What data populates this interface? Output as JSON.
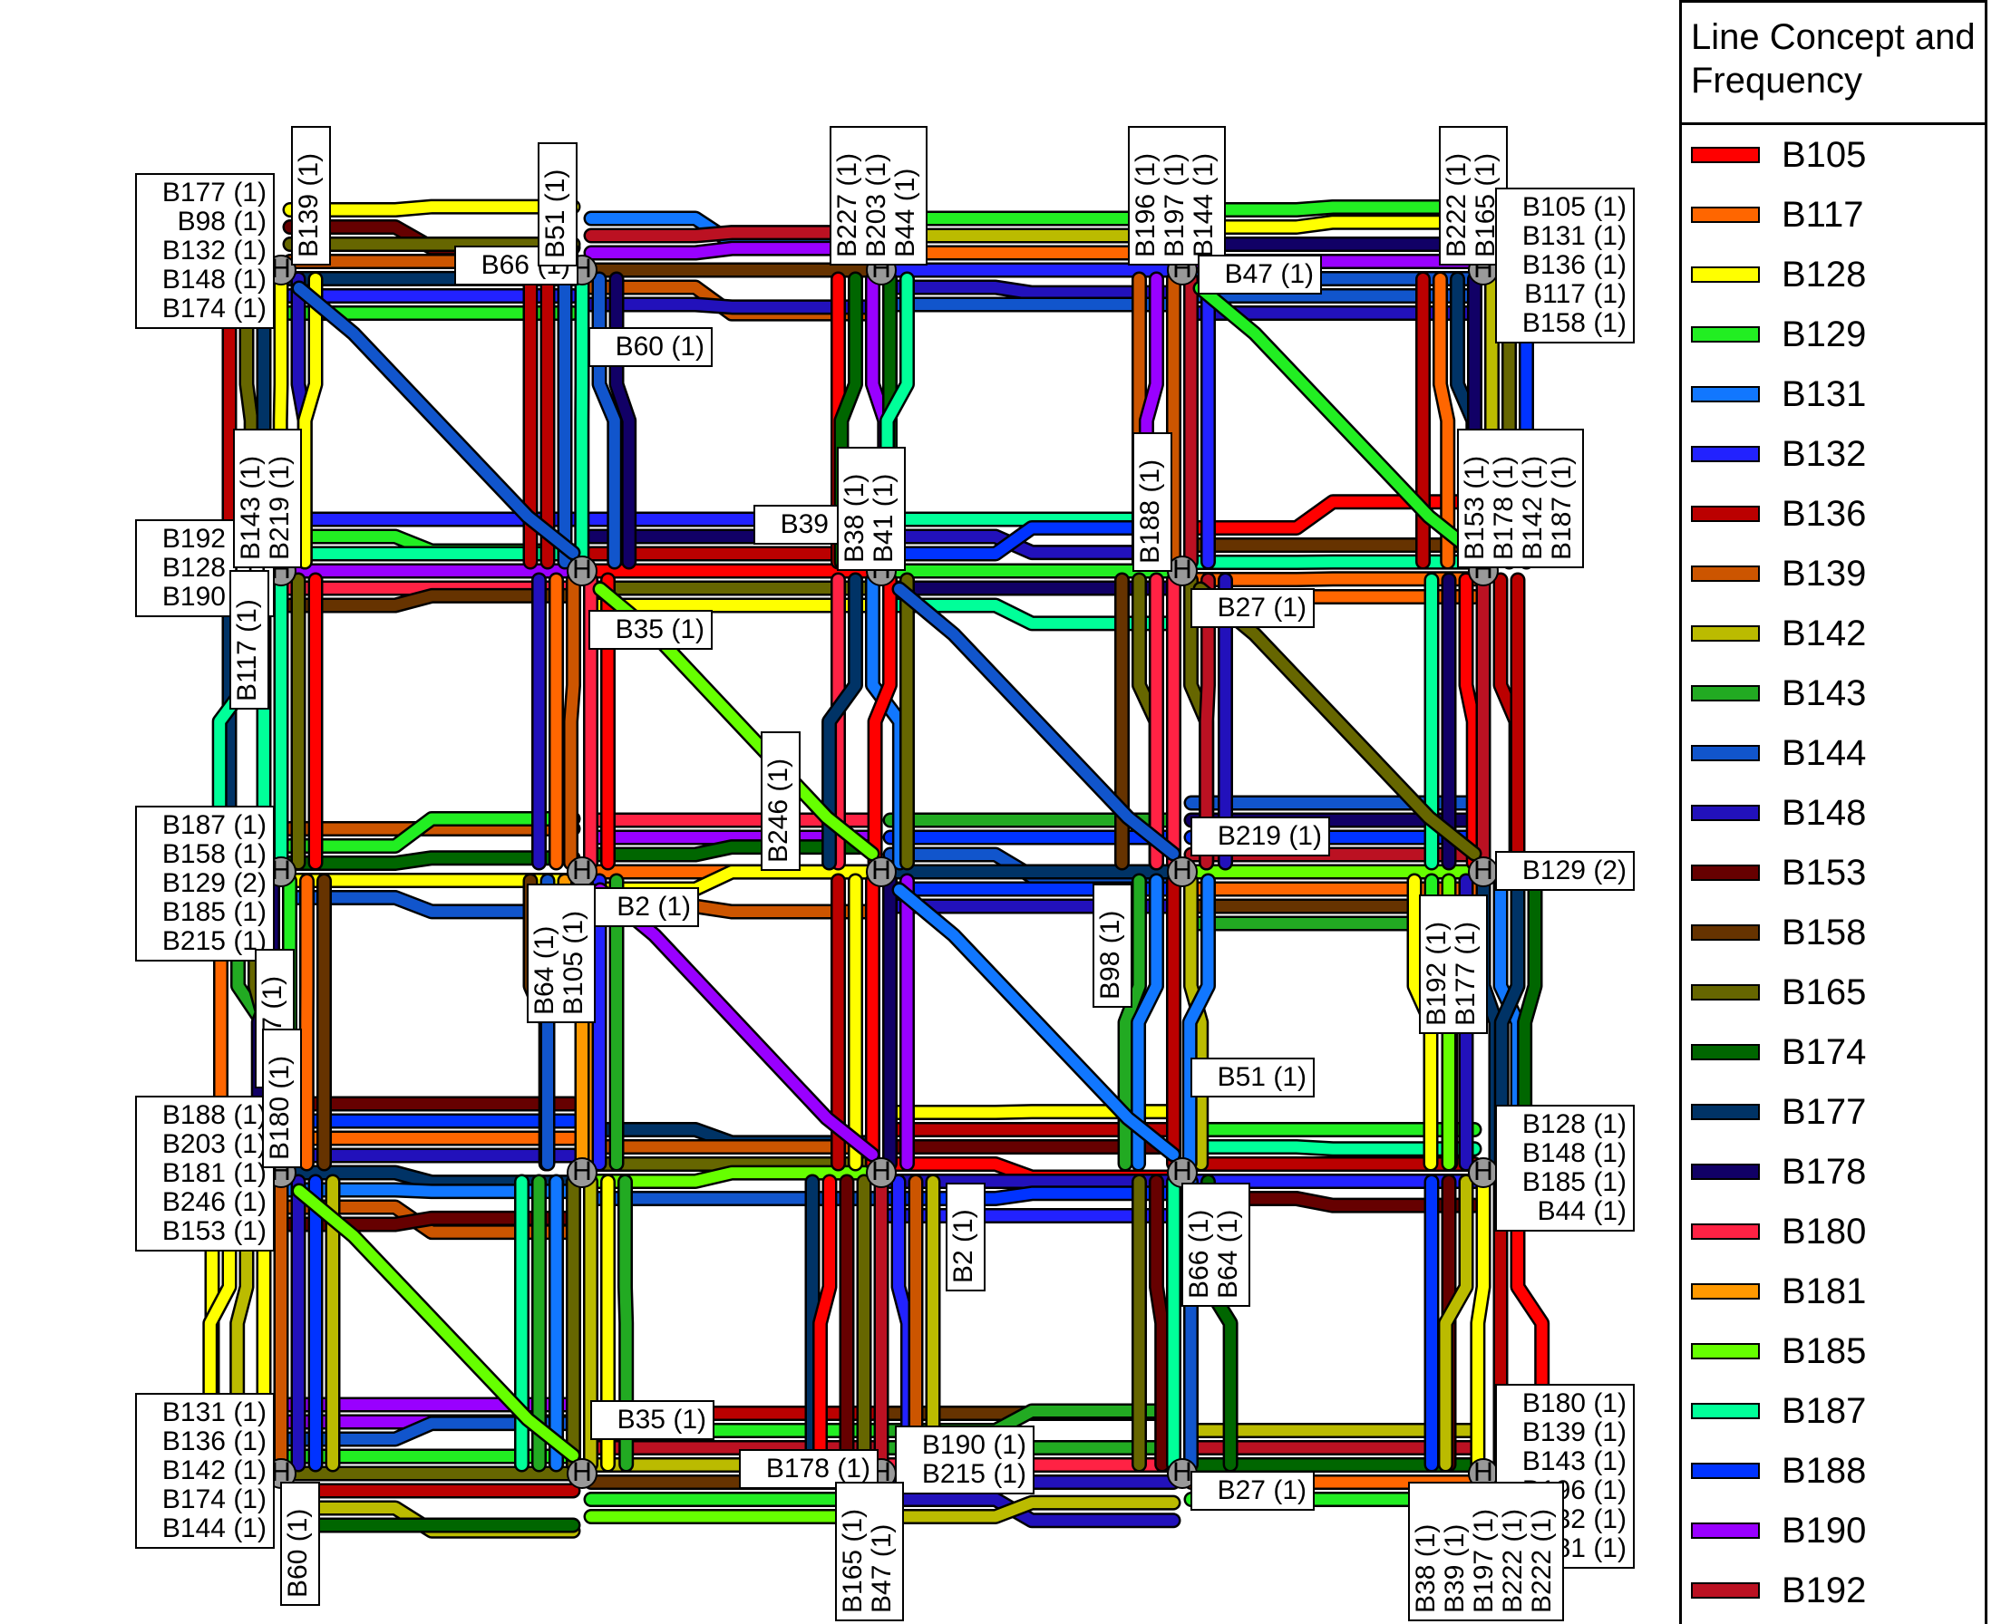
{
  "legend": {
    "title_line1": "Line Concept and",
    "title_line2": "Frequency",
    "items": [
      {
        "label": "B105",
        "color": "#ff0000"
      },
      {
        "label": "B117",
        "color": "#ff6600"
      },
      {
        "label": "B128",
        "color": "#ffff00"
      },
      {
        "label": "B129",
        "color": "#22ee22"
      },
      {
        "label": "B131",
        "color": "#1177ff"
      },
      {
        "label": "B132",
        "color": "#2222ff"
      },
      {
        "label": "B136",
        "color": "#bb0000"
      },
      {
        "label": "B139",
        "color": "#cc5500"
      },
      {
        "label": "B142",
        "color": "#bbbb00"
      },
      {
        "label": "B143",
        "color": "#22aa22"
      },
      {
        "label": "B144",
        "color": "#1155cc"
      },
      {
        "label": "B148",
        "color": "#2211bb"
      },
      {
        "label": "B153",
        "color": "#660000"
      },
      {
        "label": "B158",
        "color": "#663300"
      },
      {
        "label": "B165",
        "color": "#666600"
      },
      {
        "label": "B174",
        "color": "#006600"
      },
      {
        "label": "B177",
        "color": "#003366"
      },
      {
        "label": "B178",
        "color": "#110066"
      },
      {
        "label": "B180",
        "color": "#ff2244"
      },
      {
        "label": "B181",
        "color": "#ff9900"
      },
      {
        "label": "B185",
        "color": "#66ff00"
      },
      {
        "label": "B187",
        "color": "#00ff99"
      },
      {
        "label": "B188",
        "color": "#0033ff"
      },
      {
        "label": "B190",
        "color": "#9900ff"
      },
      {
        "label": "B192",
        "color": "#bb1122"
      }
    ]
  },
  "node_symbol": "H",
  "labels": [
    {
      "id": "nw-left",
      "lines": [
        "B177 (1)",
        "B98 (1)",
        "B132 (1)",
        "B148 (1)",
        "B174 (1)"
      ]
    },
    {
      "id": "nw-top",
      "lines": [
        "B139 (1)"
      ]
    },
    {
      "id": "n2-left",
      "lines": [
        "B66 (1)"
      ]
    },
    {
      "id": "n2-top",
      "lines": [
        "B51 (1)"
      ]
    },
    {
      "id": "n2-right",
      "lines": [
        "B60 (1)"
      ]
    },
    {
      "id": "n3-top",
      "lines": [
        "B227 (1)",
        "B203 (1)",
        "B44 (1)"
      ]
    },
    {
      "id": "n4-top",
      "lines": [
        "B196 (1)",
        "B197 (1)",
        "B144 (1)"
      ]
    },
    {
      "id": "n4-right",
      "lines": [
        "B47 (1)"
      ]
    },
    {
      "id": "ne-top",
      "lines": [
        "B222 (1)",
        "B165 (1)"
      ]
    },
    {
      "id": "ne-right",
      "lines": [
        "B105 (1)",
        "B131 (1)",
        "B136 (1)",
        "B117 (1)",
        "B158 (1)"
      ]
    },
    {
      "id": "r2c1-left",
      "lines": [
        "B192 (1)",
        "B128 (1)",
        "B190 (1)"
      ]
    },
    {
      "id": "r2c1-top",
      "lines": [
        "B143 (1)",
        "B219 (1)"
      ]
    },
    {
      "id": "r2c1-side",
      "lines": [
        "B117 (1)"
      ]
    },
    {
      "id": "r2c2-right",
      "lines": [
        "B35 (1)"
      ]
    },
    {
      "id": "r2c3-left",
      "lines": [
        "B39 (1)"
      ]
    },
    {
      "id": "r2c3-top",
      "lines": [
        "B38 (1)",
        "B41 (1)"
      ]
    },
    {
      "id": "r2c4-top",
      "lines": [
        "B188 (1)"
      ]
    },
    {
      "id": "r2c4-right",
      "lines": [
        "B27 (1)"
      ]
    },
    {
      "id": "r2c5-top",
      "lines": [
        "B153 (1)",
        "B178 (1)",
        "B142 (1)",
        "B187 (1)"
      ]
    },
    {
      "id": "r3c1-left",
      "lines": [
        "B187 (1)",
        "B158 (1)",
        "B129 (2)",
        "B185 (1)",
        "B215 (1)"
      ]
    },
    {
      "id": "r3c1-below",
      "lines": [
        "B227 (1)"
      ]
    },
    {
      "id": "r3c2-right",
      "lines": [
        "B2 (1)"
      ]
    },
    {
      "id": "r3c2-below",
      "lines": [
        "B64 (1)",
        "B105 (1)"
      ]
    },
    {
      "id": "r3c3-left",
      "lines": [
        "B246 (1)"
      ]
    },
    {
      "id": "r3c4-right",
      "lines": [
        "B219 (1)"
      ]
    },
    {
      "id": "r3c4-below",
      "lines": [
        "B98 (1)"
      ]
    },
    {
      "id": "r3c5-right",
      "lines": [
        "B129 (2)"
      ]
    },
    {
      "id": "r3c5-below",
      "lines": [
        "B192 (1)",
        "B177 (1)"
      ]
    },
    {
      "id": "r4c1-left",
      "lines": [
        "B188 (1)",
        "B203 (1)",
        "B181 (1)",
        "B246 (1)",
        "B153 (1)"
      ]
    },
    {
      "id": "r4c1-top",
      "lines": [
        "B180 (1)"
      ]
    },
    {
      "id": "r4c3-below",
      "lines": [
        "B2 (1)"
      ]
    },
    {
      "id": "r4c4-right",
      "lines": [
        "B51 (1)"
      ]
    },
    {
      "id": "r4c4-below",
      "lines": [
        "B66 (1)",
        "B64 (1)"
      ]
    },
    {
      "id": "r4c5-right",
      "lines": [
        "B128 (1)",
        "B148 (1)",
        "B185 (1)",
        "B44 (1)"
      ]
    },
    {
      "id": "r5c1-left",
      "lines": [
        "B131 (1)",
        "B136 (1)",
        "B142 (1)",
        "B174 (1)",
        "B144 (1)"
      ]
    },
    {
      "id": "r5c1-below",
      "lines": [
        "B60 (1)"
      ]
    },
    {
      "id": "r5c2-right",
      "lines": [
        "B35 (1)"
      ]
    },
    {
      "id": "r5c3-left",
      "lines": [
        "B178 (1)"
      ]
    },
    {
      "id": "r5c3-right",
      "lines": [
        "B190 (1)",
        "B215 (1)"
      ]
    },
    {
      "id": "r5c3-below",
      "lines": [
        "B165 (1)",
        "B47 (1)"
      ]
    },
    {
      "id": "r5c4-right",
      "lines": [
        "B27 (1)"
      ]
    },
    {
      "id": "r5c5-right",
      "lines": [
        "B180 (1)",
        "B139 (1)",
        "B143 (1)",
        "B196 (1)",
        "B132 (1)",
        "B181 (1)"
      ]
    },
    {
      "id": "r5c5-below",
      "lines": [
        "B38 (1)",
        "B39 (1)",
        "B197 (1)",
        "B222 (1)",
        "B222 (1)"
      ]
    }
  ]
}
